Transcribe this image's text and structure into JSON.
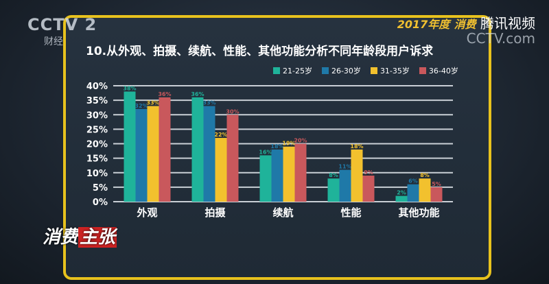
{
  "overlay": {
    "channel": "CCTV 2",
    "channel_sub": "财经",
    "top_right_year": "2017年度",
    "top_right_sub": "消费",
    "platform": "腾讯视频",
    "watermark": "CCTV.com",
    "show": [
      "消费",
      "主张"
    ]
  },
  "chart_data": {
    "type": "bar",
    "title": "10.从外观、拍摄、续航、性能、其他功能分析不同年龄段用户诉求",
    "categories": [
      "外观",
      "拍摄",
      "续航",
      "性能",
      "其他功能"
    ],
    "series": [
      {
        "name": "21-25岁",
        "color": "#1fb39a",
        "values": [
          38,
          36,
          16,
          8,
          2
        ]
      },
      {
        "name": "26-30岁",
        "color": "#1f79a8",
        "values": [
          32,
          33,
          18,
          11,
          6
        ]
      },
      {
        "name": "31-35岁",
        "color": "#f2c12e",
        "values": [
          33,
          22,
          19,
          18,
          8
        ]
      },
      {
        "name": "36-40岁",
        "color": "#c9585c",
        "values": [
          36,
          30,
          20,
          9,
          5
        ]
      }
    ],
    "ylim": [
      0,
      40
    ],
    "yticks": [
      "0%",
      "5%",
      "10%",
      "15%",
      "20%",
      "25%",
      "30%",
      "35%",
      "40%"
    ],
    "grid": true,
    "legend": "top-right"
  }
}
